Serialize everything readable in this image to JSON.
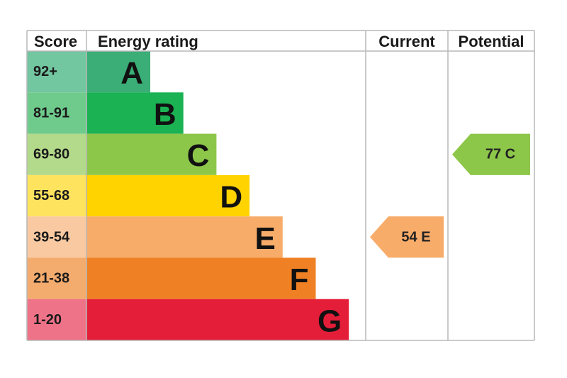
{
  "chart_data": {
    "type": "bar",
    "headers": {
      "score": "Score",
      "rating": "Energy rating",
      "current": "Current",
      "potential": "Potential"
    },
    "bands": [
      {
        "score": "92+",
        "letter": "A",
        "color": "#3aae76",
        "score_bg": "#72c6a0"
      },
      {
        "score": "81-91",
        "letter": "B",
        "color": "#1ab253",
        "score_bg": "#6fcb8c"
      },
      {
        "score": "69-80",
        "letter": "C",
        "color": "#8dc74a",
        "score_bg": "#b3d98a"
      },
      {
        "score": "55-68",
        "letter": "D",
        "color": "#fed300",
        "score_bg": "#fee35f"
      },
      {
        "score": "39-54",
        "letter": "E",
        "color": "#f8ac6a",
        "score_bg": "#f9c9a1"
      },
      {
        "score": "21-38",
        "letter": "F",
        "color": "#ef8124",
        "score_bg": "#f3ab6e"
      },
      {
        "score": "1-20",
        "letter": "G",
        "color": "#e41e39",
        "score_bg": "#ef7388"
      }
    ],
    "current": {
      "value": 54,
      "letter": "E",
      "label": "54  E",
      "color": "#f8ac6a"
    },
    "potential": {
      "value": 77,
      "letter": "C",
      "label": "77  C",
      "color": "#8dc74a"
    }
  }
}
